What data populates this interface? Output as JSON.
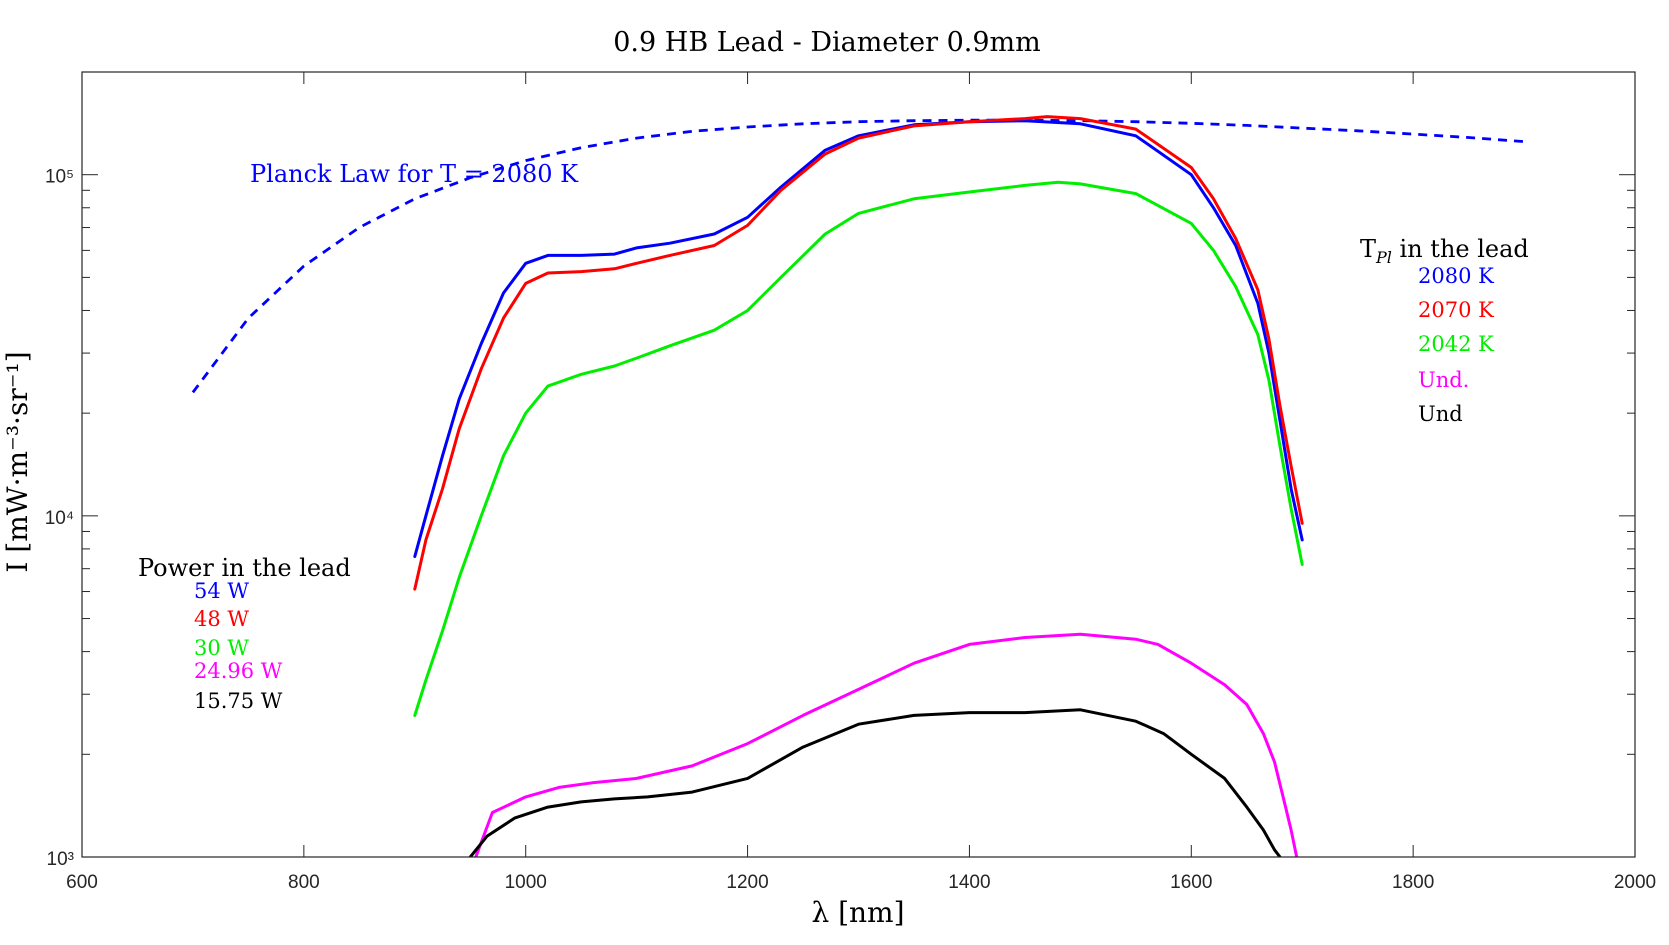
{
  "chart_data": {
    "type": "line",
    "title": "0.9 HB Lead - Diameter 0.9mm",
    "xlabel": "λ [nm]",
    "ylabel": "I [mW·m⁻³·sr⁻¹]",
    "xlim": [
      600,
      2000
    ],
    "ylim": [
      1000,
      200000
    ],
    "yscale": "log",
    "xticks": [
      "600",
      "800",
      "1000",
      "1200",
      "1400",
      "1600",
      "1800",
      "2000"
    ],
    "yticks": [
      "10³",
      "10⁴",
      "10⁵"
    ],
    "grid": false,
    "planck_label": "Planck Law for T = 2080 K",
    "legend_power": {
      "title": "Power in the lead",
      "entries": [
        "54 W",
        "48 W",
        "30 W",
        "24.96 W",
        "15.75 W"
      ]
    },
    "legend_temp": {
      "title": "T_Pl in the lead",
      "entries": [
        "2080 K",
        "2070 K",
        "2042 K",
        "Und.",
        "Und"
      ]
    },
    "series": [
      {
        "color": "#0000ff",
        "style": "dashed",
        "x": [
          700,
          750,
          800,
          850,
          900,
          950,
          1000,
          1050,
          1100,
          1150,
          1200,
          1250,
          1300,
          1350,
          1400,
          1450,
          1500,
          1550,
          1600,
          1650,
          1700,
          1750,
          1800,
          1850,
          1900
        ],
        "y": [
          23000,
          38000,
          54000,
          70000,
          85000,
          98000,
          110000,
          120000,
          128000,
          134000,
          138000,
          141000,
          143000,
          144000,
          144500,
          144500,
          144000,
          143000,
          141500,
          139500,
          137000,
          134500,
          131500,
          128500,
          125000
        ]
      },
      {
        "color": "#0000ff",
        "style": "solid",
        "x": [
          900,
          910,
          925,
          940,
          960,
          980,
          1000,
          1020,
          1050,
          1080,
          1100,
          1130,
          1170,
          1200,
          1230,
          1270,
          1300,
          1350,
          1400,
          1450,
          1500,
          1550,
          1600,
          1620,
          1640,
          1660,
          1670,
          1680,
          1690,
          1700
        ],
        "y": [
          7600,
          10000,
          15000,
          22000,
          32000,
          45000,
          55000,
          58000,
          58000,
          58500,
          61000,
          63000,
          67000,
          75000,
          92000,
          118000,
          130000,
          140000,
          143000,
          144000,
          141000,
          130000,
          100000,
          80000,
          62000,
          42000,
          30000,
          19000,
          12000,
          8500
        ]
      },
      {
        "color": "#ff0000",
        "style": "solid",
        "x": [
          900,
          910,
          925,
          940,
          960,
          980,
          1000,
          1020,
          1050,
          1080,
          1100,
          1130,
          1170,
          1200,
          1230,
          1270,
          1300,
          1350,
          1400,
          1450,
          1470,
          1500,
          1550,
          1600,
          1620,
          1640,
          1660,
          1670,
          1680,
          1690,
          1700
        ],
        "y": [
          6100,
          8500,
          12000,
          18000,
          27000,
          38000,
          48000,
          51500,
          52000,
          53000,
          55000,
          58000,
          62000,
          71000,
          90000,
          115000,
          128000,
          139000,
          143000,
          146000,
          148000,
          146000,
          136000,
          105000,
          85000,
          65000,
          46000,
          33000,
          21000,
          14000,
          9500
        ]
      },
      {
        "color": "#00ee00",
        "style": "solid",
        "x": [
          900,
          910,
          925,
          940,
          960,
          980,
          1000,
          1020,
          1050,
          1080,
          1100,
          1130,
          1170,
          1200,
          1230,
          1270,
          1300,
          1350,
          1400,
          1450,
          1480,
          1500,
          1550,
          1600,
          1620,
          1640,
          1660,
          1670,
          1680,
          1690,
          1700
        ],
        "y": [
          2600,
          3300,
          4600,
          6600,
          10000,
          15000,
          20000,
          24000,
          26000,
          27500,
          29000,
          31500,
          35000,
          40000,
          50000,
          67000,
          77000,
          85000,
          89000,
          93000,
          95000,
          94000,
          88000,
          72000,
          60000,
          47000,
          34000,
          25000,
          16000,
          10500,
          7200
        ]
      },
      {
        "color": "#ff00ff",
        "style": "solid",
        "x": [
          955,
          970,
          1000,
          1030,
          1060,
          1100,
          1150,
          1200,
          1250,
          1300,
          1350,
          1400,
          1450,
          1500,
          1550,
          1570,
          1600,
          1630,
          1650,
          1665,
          1675,
          1685,
          1690,
          1695
        ],
        "y": [
          1000,
          1350,
          1500,
          1600,
          1650,
          1700,
          1850,
          2150,
          2600,
          3100,
          3700,
          4200,
          4400,
          4500,
          4350,
          4200,
          3700,
          3200,
          2800,
          2300,
          1900,
          1400,
          1200,
          1000
        ]
      },
      {
        "color": "#000000",
        "style": "solid",
        "x": [
          950,
          965,
          990,
          1020,
          1050,
          1080,
          1110,
          1150,
          1200,
          1250,
          1300,
          1350,
          1400,
          1450,
          1500,
          1550,
          1575,
          1600,
          1630,
          1650,
          1665,
          1675,
          1680
        ],
        "y": [
          1000,
          1150,
          1300,
          1400,
          1450,
          1480,
          1500,
          1550,
          1700,
          2100,
          2450,
          2600,
          2650,
          2650,
          2700,
          2500,
          2300,
          2000,
          1700,
          1400,
          1200,
          1050,
          1000
        ]
      }
    ]
  }
}
